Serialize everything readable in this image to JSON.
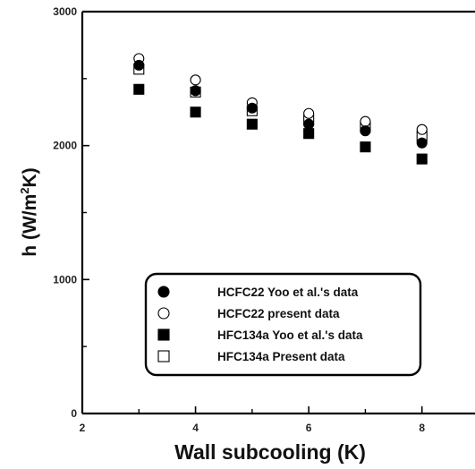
{
  "chart_data": {
    "type": "scatter",
    "xlabel": "Wall subcooling (K)",
    "ylabel": {
      "main": "h (W/m",
      "sup": "2",
      "tail": "K)"
    },
    "xlim": [
      2,
      9
    ],
    "ylim": [
      0,
      3000
    ],
    "xticks": [
      2,
      4,
      6,
      8
    ],
    "yticks": [
      0,
      1000,
      2000,
      3000
    ],
    "grid": false,
    "legend_position": "bottom-right",
    "series": [
      {
        "name": "HCFC22 Yoo et al.'s data",
        "marker": "circle-filled",
        "color": "#000000",
        "x": [
          3,
          4,
          5,
          6,
          7,
          8
        ],
        "y": [
          2600,
          2410,
          2280,
          2160,
          2110,
          2020
        ]
      },
      {
        "name": "HCFC22 present data",
        "marker": "circle-open",
        "color": "#000000",
        "x": [
          3,
          4,
          5,
          6,
          7,
          8
        ],
        "y": [
          2650,
          2490,
          2320,
          2240,
          2180,
          2120
        ]
      },
      {
        "name": "HFC134a Yoo et al.'s data",
        "marker": "square-filled",
        "color": "#000000",
        "x": [
          3,
          4,
          5,
          6,
          7,
          8
        ],
        "y": [
          2420,
          2250,
          2160,
          2090,
          1990,
          1900
        ]
      },
      {
        "name": "HFC134a Present data",
        "marker": "square-open",
        "color": "#000000",
        "x": [
          3,
          4,
          5,
          6,
          7,
          8
        ],
        "y": [
          2570,
          2400,
          2260,
          2190,
          2140,
          2070
        ]
      }
    ]
  }
}
